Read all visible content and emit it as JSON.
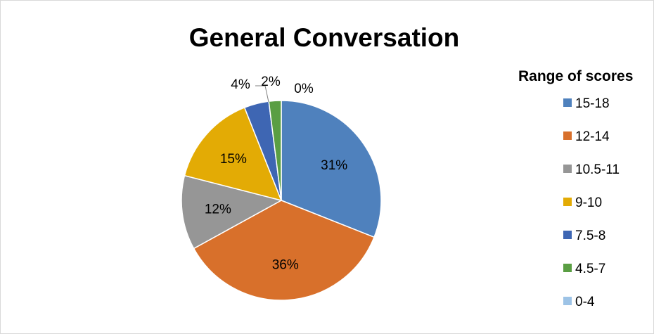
{
  "chart_data": {
    "type": "pie",
    "title": "General Conversation",
    "legend_title": "Range of scores",
    "legend_position": "right",
    "categories": [
      "15-18",
      "12-14",
      "10.5-11",
      "9-10",
      "7.5-8",
      "4.5-7",
      "0-4"
    ],
    "values": [
      31,
      36,
      12,
      15,
      4,
      2,
      0
    ],
    "data_labels": [
      "31%",
      "36%",
      "12%",
      "15%",
      "4%",
      "2%",
      "0%"
    ],
    "colors": [
      "#4f81bd",
      "#d8702b",
      "#969696",
      "#e3ab05",
      "#3e66b3",
      "#5a9e43",
      "#9dc3e6"
    ]
  }
}
